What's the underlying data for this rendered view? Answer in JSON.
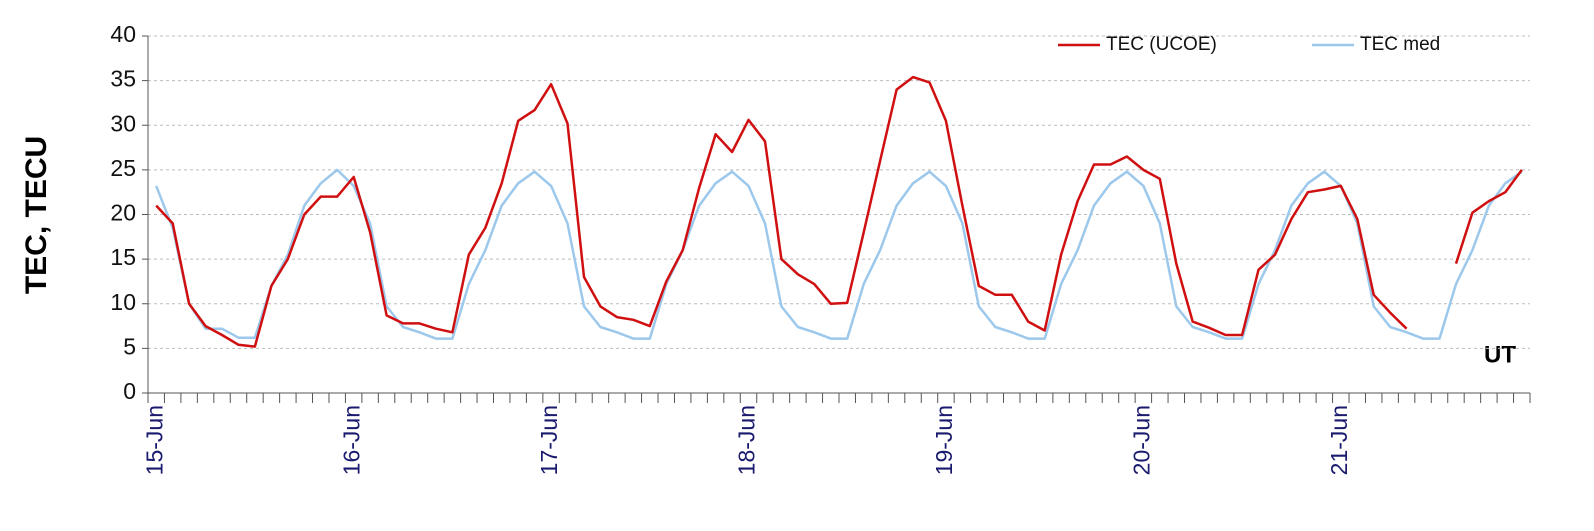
{
  "chart_data": {
    "type": "line",
    "y_label": "TEC, TECU",
    "annotation": "UT",
    "categories": [
      "15-Jun",
      null,
      null,
      null,
      null,
      null,
      null,
      null,
      null,
      null,
      null,
      null,
      "16-Jun",
      null,
      null,
      null,
      null,
      null,
      null,
      null,
      null,
      null,
      null,
      null,
      "17-Jun",
      null,
      null,
      null,
      null,
      null,
      null,
      null,
      null,
      null,
      null,
      null,
      "18-Jun",
      null,
      null,
      null,
      null,
      null,
      null,
      null,
      null,
      null,
      null,
      null,
      "19-Jun",
      null,
      null,
      null,
      null,
      null,
      null,
      null,
      null,
      null,
      null,
      null,
      "20-Jun",
      null,
      null,
      null,
      null,
      null,
      null,
      null,
      null,
      null,
      null,
      null,
      "21-Jun",
      null,
      null,
      null,
      null,
      null,
      null,
      null,
      null,
      null,
      null,
      null
    ],
    "series": [
      {
        "name": "TEC (UCOE)",
        "color": "#d01010",
        "values": [
          21,
          19,
          10,
          7.5,
          6.5,
          5.4,
          5.2,
          12,
          15,
          20,
          22,
          22,
          24.2,
          18,
          8.7,
          7.8,
          7.8,
          7.2,
          6.8,
          15.5,
          18.5,
          23.5,
          30.5,
          31.7,
          34.6,
          30.2,
          13,
          9.7,
          8.5,
          8.2,
          7.5,
          12.5,
          16,
          23,
          29,
          27,
          30.6,
          28.2,
          15,
          13.3,
          12.2,
          10,
          10.1,
          18,
          26,
          34,
          35.4,
          34.8,
          30.5,
          21,
          12,
          11,
          11,
          8,
          7,
          15.5,
          21.5,
          25.6,
          25.6,
          26.5,
          25,
          24,
          14.5,
          8,
          7.3,
          6.5,
          6.5,
          13.8,
          15.5,
          19.5,
          22.5,
          22.8,
          23.2,
          19.5,
          11,
          9,
          7.2,
          null,
          null,
          14.5,
          20.2,
          21.5,
          22.5,
          25
        ]
      },
      {
        "name": "TEC med",
        "color": "#9cc8ec",
        "values": [
          23.2,
          18.5,
          10,
          7.2,
          7.2,
          6.2,
          6.2,
          12,
          15.5,
          21,
          23.5,
          25,
          23.2,
          19,
          9.7,
          7.4,
          6.8,
          6.1,
          6.1,
          12.2,
          16,
          21,
          23.5,
          24.8,
          23.2,
          19,
          9.7,
          7.4,
          6.8,
          6.1,
          6.1,
          12.2,
          16,
          21,
          23.5,
          24.8,
          23.2,
          19,
          9.7,
          7.4,
          6.8,
          6.1,
          6.1,
          12.2,
          16,
          21,
          23.5,
          24.8,
          23.2,
          19,
          9.7,
          7.4,
          6.8,
          6.1,
          6.1,
          12.2,
          16,
          21,
          23.5,
          24.8,
          23.2,
          19,
          9.7,
          7.4,
          6.8,
          6.1,
          6.1,
          12.2,
          16,
          21,
          23.5,
          24.8,
          23.2,
          19,
          9.7,
          7.4,
          6.8,
          6.1,
          6.1,
          12.2,
          16,
          21,
          23.5,
          24.8
        ]
      }
    ],
    "ylim": [
      0,
      40
    ],
    "yticks": [
      0,
      5,
      10,
      15,
      20,
      25,
      30,
      35,
      40
    ],
    "grid": true,
    "legend": "top-right"
  }
}
